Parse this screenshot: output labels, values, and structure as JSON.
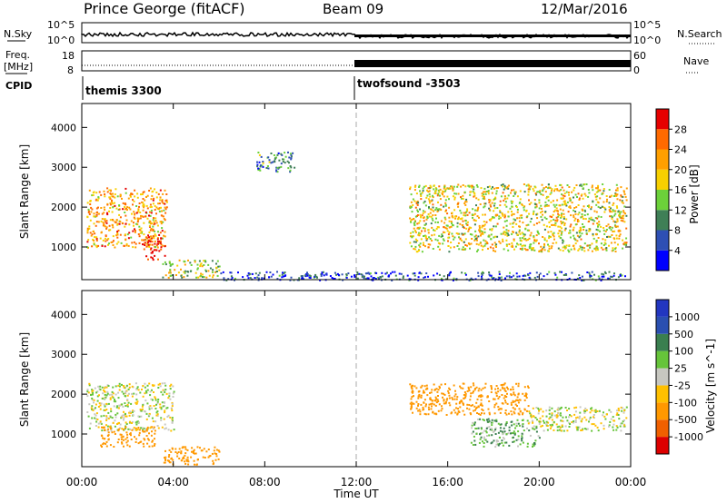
{
  "header": {
    "station": "Prince George (fitACF)",
    "beam": "Beam 09",
    "date": "12/Mar/2016"
  },
  "side_labels": {
    "nsky": "N.Sky",
    "nsearch": "N.Search",
    "freq_line1": "Freq.",
    "freq_line2": "[MHz]",
    "nave": "Nave",
    "cpid": "CPID"
  },
  "noise_axis": {
    "top": "10^5",
    "bottom": "10^0"
  },
  "freq_axis": {
    "left_ticks": [
      "18",
      "8"
    ],
    "right_ticks": [
      "60",
      "0"
    ]
  },
  "cpid_segments": [
    {
      "label": "themis 3300",
      "start": "00:00"
    },
    {
      "label": "twofsound -3503",
      "start": "12:00"
    }
  ],
  "colors": {
    "power": [
      "#0000ff",
      "#2e4fb4",
      "#3f7f56",
      "#6cd13a",
      "#f7d000",
      "#ff9f00",
      "#ff6a00",
      "#e60000"
    ],
    "velocity": [
      "#2236c0",
      "#2a4fb0",
      "#3a7f4f",
      "#66c43a",
      "#c7c7c0",
      "#ffc000",
      "#ff9800",
      "#f06000",
      "#dd0000"
    ],
    "sky_ok": "#bfbfbf"
  },
  "chart_data": [
    {
      "type": "heatmap",
      "name": "power",
      "xlabel": "",
      "ylabel": "Slant Range [km]",
      "xlim": [
        "00:00",
        "24:00"
      ],
      "ylim": [
        180,
        4600
      ],
      "y_ticks": [
        1000,
        2000,
        3000,
        4000
      ],
      "colorbar_label": "Power [dB]",
      "colorbar_ticks": [
        4,
        8,
        12,
        16,
        20,
        24,
        28
      ],
      "colorbar_range": [
        0,
        32
      ],
      "echo_regions": [
        {
          "t0": 0.2,
          "t1": 3.7,
          "r0": 1000,
          "r1": 2500,
          "value": 22
        },
        {
          "t0": 2.6,
          "t1": 3.6,
          "r0": 700,
          "r1": 1300,
          "value": 30
        },
        {
          "t0": 3.5,
          "t1": 6.0,
          "r0": 250,
          "r1": 700,
          "value": 16
        },
        {
          "t0": 7.6,
          "t1": 9.3,
          "r0": 2900,
          "r1": 3400,
          "value": 10
        },
        {
          "t0": 14.3,
          "t1": 23.8,
          "r0": 900,
          "r1": 2600,
          "value": 18
        },
        {
          "t0": 6.0,
          "t1": 23.8,
          "r0": 180,
          "r1": 400,
          "value": 6
        }
      ]
    },
    {
      "type": "heatmap",
      "name": "velocity",
      "xlabel": "Time UT",
      "ylabel": "Slant Range [km]",
      "xlim": [
        "00:00",
        "24:00"
      ],
      "ylim": [
        180,
        4600
      ],
      "x_ticks": [
        "00:00",
        "04:00",
        "08:00",
        "12:00",
        "16:00",
        "20:00",
        "00:00"
      ],
      "y_ticks": [
        1000,
        2000,
        3000,
        4000
      ],
      "colorbar_label": "Velocity [m s^-1]",
      "colorbar_ticks": [
        "1000",
        "500",
        "100",
        "25",
        "-25",
        "-100",
        "-500",
        "-1000"
      ],
      "echo_regions": [
        {
          "t0": 0.2,
          "t1": 4.0,
          "r0": 1100,
          "r1": 2300,
          "value": 0
        },
        {
          "t0": 0.8,
          "t1": 3.2,
          "r0": 700,
          "r1": 1200,
          "value": -300
        },
        {
          "t0": 3.5,
          "t1": 6.0,
          "r0": 250,
          "r1": 700,
          "value": -200
        },
        {
          "t0": 14.3,
          "t1": 19.5,
          "r0": 1500,
          "r1": 2300,
          "value": -300
        },
        {
          "t0": 17.0,
          "t1": 20.0,
          "r0": 700,
          "r1": 1400,
          "value": 80
        },
        {
          "t0": 19.5,
          "t1": 23.8,
          "r0": 1100,
          "r1": 1700,
          "value": 0
        }
      ]
    }
  ]
}
